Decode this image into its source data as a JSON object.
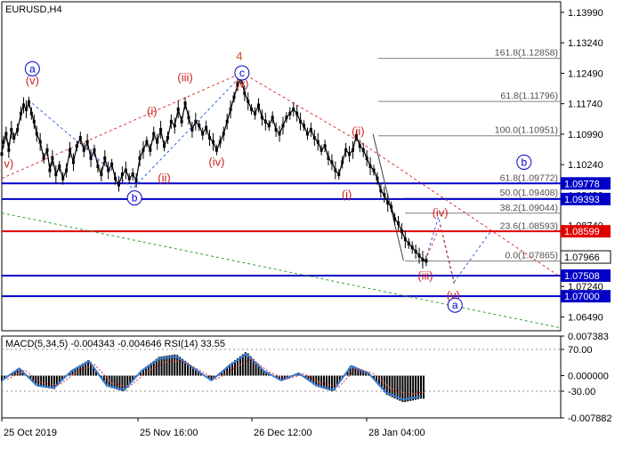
{
  "chart_data": {
    "type": "candlestick",
    "symbol_label": "EURUSD,H4",
    "x_tick_labels": [
      "25 Oct 2019",
      "25 Nov 16:00",
      "26 Dec 12:00",
      "28 Jan 04:00"
    ],
    "price_axis": {
      "ylim": [
        1.0615,
        1.1425
      ],
      "ticks": [
        {
          "value": 1.1399,
          "label": "1.13990"
        },
        {
          "value": 1.1324,
          "label": "1.13240"
        },
        {
          "value": 1.1249,
          "label": "1.12490"
        },
        {
          "value": 1.1174,
          "label": "1.11740"
        },
        {
          "value": 1.1099,
          "label": "1.10990"
        },
        {
          "value": 1.1024,
          "label": "1.10240"
        },
        {
          "value": 1.0949,
          "label": "1.09490"
        },
        {
          "value": 1.0874,
          "label": "1.08740"
        },
        {
          "value": 1.0724,
          "label": "1.07240"
        },
        {
          "value": 1.0649,
          "label": "1.06490"
        }
      ]
    },
    "price_series": [
      {
        "t": 0,
        "v": 1.105
      },
      {
        "t": 2,
        "v": 1.108
      },
      {
        "t": 5,
        "v": 1.11
      },
      {
        "t": 8,
        "v": 1.106
      },
      {
        "t": 11,
        "v": 1.111
      },
      {
        "t": 14,
        "v": 1.109
      },
      {
        "t": 18,
        "v": 1.111
      },
      {
        "t": 22,
        "v": 1.115
      },
      {
        "t": 25,
        "v": 1.117
      },
      {
        "t": 28,
        "v": 1.116
      },
      {
        "t": 31,
        "v": 1.1178
      },
      {
        "t": 34,
        "v": 1.115
      },
      {
        "t": 37,
        "v": 1.113
      },
      {
        "t": 40,
        "v": 1.11
      },
      {
        "t": 44,
        "v": 1.108
      },
      {
        "t": 48,
        "v": 1.104
      },
      {
        "t": 52,
        "v": 1.106
      },
      {
        "t": 55,
        "v": 1.101
      },
      {
        "t": 58,
        "v": 1.104
      },
      {
        "t": 62,
        "v": 1.1
      },
      {
        "t": 66,
        "v": 1.102
      },
      {
        "t": 70,
        "v": 1.099
      },
      {
        "t": 74,
        "v": 1.101
      },
      {
        "t": 78,
        "v": 1.106
      },
      {
        "t": 82,
        "v": 1.103
      },
      {
        "t": 86,
        "v": 1.107
      },
      {
        "t": 90,
        "v": 1.109
      },
      {
        "t": 94,
        "v": 1.106
      },
      {
        "t": 98,
        "v": 1.108
      },
      {
        "t": 102,
        "v": 1.104
      },
      {
        "t": 106,
        "v": 1.106
      },
      {
        "t": 110,
        "v": 1.102
      },
      {
        "t": 114,
        "v": 1.1
      },
      {
        "t": 118,
        "v": 1.104
      },
      {
        "t": 122,
        "v": 1.101
      },
      {
        "t": 126,
        "v": 1.1025
      },
      {
        "t": 130,
        "v": 1.099
      },
      {
        "t": 134,
        "v": 1.0975
      },
      {
        "t": 138,
        "v": 1.1
      },
      {
        "t": 142,
        "v": 1.101
      },
      {
        "t": 146,
        "v": 1.099
      },
      {
        "t": 150,
        "v": 1.1
      },
      {
        "t": 154,
        "v": 1.0985
      },
      {
        "t": 158,
        "v": 1.104
      },
      {
        "t": 162,
        "v": 1.106
      },
      {
        "t": 166,
        "v": 1.108
      },
      {
        "t": 170,
        "v": 1.106
      },
      {
        "t": 174,
        "v": 1.11
      },
      {
        "t": 178,
        "v": 1.108
      },
      {
        "t": 182,
        "v": 1.111
      },
      {
        "t": 186,
        "v": 1.107
      },
      {
        "t": 190,
        "v": 1.109
      },
      {
        "t": 194,
        "v": 1.113
      },
      {
        "t": 198,
        "v": 1.112
      },
      {
        "t": 202,
        "v": 1.116
      },
      {
        "t": 206,
        "v": 1.113
      },
      {
        "t": 210,
        "v": 1.1175
      },
      {
        "t": 214,
        "v": 1.114
      },
      {
        "t": 218,
        "v": 1.111
      },
      {
        "t": 222,
        "v": 1.113
      },
      {
        "t": 226,
        "v": 1.112
      },
      {
        "t": 230,
        "v": 1.11
      },
      {
        "t": 234,
        "v": 1.1115
      },
      {
        "t": 238,
        "v": 1.109
      },
      {
        "t": 242,
        "v": 1.108
      },
      {
        "t": 246,
        "v": 1.106
      },
      {
        "t": 250,
        "v": 1.108
      },
      {
        "t": 254,
        "v": 1.11
      },
      {
        "t": 258,
        "v": 1.113
      },
      {
        "t": 262,
        "v": 1.116
      },
      {
        "t": 266,
        "v": 1.119
      },
      {
        "t": 270,
        "v": 1.122
      },
      {
        "t": 274,
        "v": 1.1239
      },
      {
        "t": 278,
        "v": 1.12
      },
      {
        "t": 282,
        "v": 1.118
      },
      {
        "t": 286,
        "v": 1.116
      },
      {
        "t": 290,
        "v": 1.115
      },
      {
        "t": 294,
        "v": 1.117
      },
      {
        "t": 298,
        "v": 1.114
      },
      {
        "t": 302,
        "v": 1.113
      },
      {
        "t": 306,
        "v": 1.112
      },
      {
        "t": 310,
        "v": 1.114
      },
      {
        "t": 314,
        "v": 1.111
      },
      {
        "t": 318,
        "v": 1.11
      },
      {
        "t": 322,
        "v": 1.112
      },
      {
        "t": 326,
        "v": 1.114
      },
      {
        "t": 330,
        "v": 1.115
      },
      {
        "t": 334,
        "v": 1.116
      },
      {
        "t": 338,
        "v": 1.115
      },
      {
        "t": 342,
        "v": 1.113
      },
      {
        "t": 346,
        "v": 1.112
      },
      {
        "t": 350,
        "v": 1.11
      },
      {
        "t": 354,
        "v": 1.111
      },
      {
        "t": 358,
        "v": 1.109
      },
      {
        "t": 362,
        "v": 1.108
      },
      {
        "t": 366,
        "v": 1.106
      },
      {
        "t": 370,
        "v": 1.107
      },
      {
        "t": 374,
        "v": 1.104
      },
      {
        "t": 378,
        "v": 1.103
      },
      {
        "t": 382,
        "v": 1.101
      },
      {
        "t": 386,
        "v": 1.1
      },
      {
        "t": 390,
        "v": 1.103
      },
      {
        "t": 394,
        "v": 1.106
      },
      {
        "t": 398,
        "v": 1.105
      },
      {
        "t": 402,
        "v": 1.106
      },
      {
        "t": 406,
        "v": 1.1095
      },
      {
        "t": 410,
        "v": 1.107
      },
      {
        "t": 414,
        "v": 1.106
      },
      {
        "t": 418,
        "v": 1.104
      },
      {
        "t": 422,
        "v": 1.102
      },
      {
        "t": 426,
        "v": 1.101
      },
      {
        "t": 430,
        "v": 1.099
      },
      {
        "t": 434,
        "v": 1.096
      },
      {
        "t": 438,
        "v": 1.095
      },
      {
        "t": 442,
        "v": 1.093
      },
      {
        "t": 446,
        "v": 1.092
      },
      {
        "t": 450,
        "v": 1.089
      },
      {
        "t": 454,
        "v": 1.088
      },
      {
        "t": 458,
        "v": 1.086
      },
      {
        "t": 462,
        "v": 1.084
      },
      {
        "t": 466,
        "v": 1.083
      },
      {
        "t": 470,
        "v": 1.082
      },
      {
        "t": 474,
        "v": 1.081
      },
      {
        "t": 478,
        "v": 1.08
      },
      {
        "t": 482,
        "v": 1.079
      },
      {
        "t": 486,
        "v": 1.0787
      }
    ],
    "levels": [
      {
        "value": 1.09778,
        "label": "1.09778",
        "color": "#0000c8",
        "style": "solid",
        "label_bg": "#0000c8"
      },
      {
        "value": 1.09393,
        "label": "1.09393",
        "color": "#0000c8",
        "style": "solid",
        "label_bg": "#0000c8"
      },
      {
        "value": 1.08599,
        "label": "1.08599",
        "color": "#e00000",
        "style": "solid",
        "label_bg": "#e00000"
      },
      {
        "value": 1.07508,
        "label": "1.07508",
        "color": "#0000c8",
        "style": "solid",
        "label_bg": "#0000c8"
      },
      {
        "value": 1.07,
        "label": "1.07000",
        "color": "#0000c8",
        "style": "solid",
        "label_bg": "#0000c8"
      },
      {
        "value": 1.07966,
        "label": "1.07966",
        "color": "#ffffff",
        "style": "current",
        "label_bg": "#ffffff"
      }
    ],
    "fib_extension_lines": [
      {
        "value": 1.12858,
        "label": "161.8(1.12858)"
      },
      {
        "value": 1.11796,
        "label": "61.8(1.11796)"
      },
      {
        "value": 1.10951,
        "label": "100.0(1.10951)"
      }
    ],
    "fib_retracement_lines": [
      {
        "value": 1.09772,
        "label": "61.8(1.09772)"
      },
      {
        "value": 1.09408,
        "label": "50.0(1.09408)"
      },
      {
        "value": 1.09044,
        "label": "38.2(1.09044)"
      },
      {
        "value": 1.08593,
        "label": "23.6(1.08593)"
      },
      {
        "value": 1.07865,
        "label": "0.0(1.07865)"
      }
    ],
    "wave_labels": [
      {
        "text": "4",
        "t": 272,
        "v": 1.129,
        "color": "#d04020",
        "circled": false
      },
      {
        "text": "c",
        "t": 275,
        "v": 1.125,
        "color": "#0000c8",
        "circled": true
      },
      {
        "text": "(v)",
        "t": 275,
        "v": 1.1222,
        "color": "#d02020",
        "circled": false
      },
      {
        "text": "(iii)",
        "t": 210,
        "v": 1.1238,
        "color": "#d02020",
        "circled": false
      },
      {
        "text": "(i)",
        "t": 172,
        "v": 1.1155,
        "color": "#d02020",
        "circled": false
      },
      {
        "text": "(ii)",
        "t": 186,
        "v": 1.099,
        "color": "#d02020",
        "circled": false
      },
      {
        "text": "(iv)",
        "t": 246,
        "v": 1.103,
        "color": "#d02020",
        "circled": false
      },
      {
        "text": "b",
        "t": 152,
        "v": 1.0942,
        "color": "#0000c8",
        "circled": true
      },
      {
        "text": "a",
        "t": 35,
        "v": 1.126,
        "color": "#0000c8",
        "circled": true
      },
      {
        "text": "(v)",
        "t": 35,
        "v": 1.123,
        "color": "#d02020",
        "circled": false
      },
      {
        "text": "v)",
        "t": 8,
        "v": 1.1025,
        "color": "#d02020",
        "circled": false
      },
      {
        "text": "(ii)",
        "t": 408,
        "v": 1.1105,
        "color": "#d02020",
        "circled": false
      },
      {
        "text": "(i)",
        "t": 395,
        "v": 1.095,
        "color": "#d02020",
        "circled": false
      },
      {
        "text": "(iii)",
        "t": 485,
        "v": 1.075,
        "color": "#d02020",
        "circled": false
      },
      {
        "text": "(iv)",
        "t": 502,
        "v": 1.0905,
        "color": "#d02020",
        "circled": false
      },
      {
        "text": "(v)",
        "t": 517,
        "v": 1.0702,
        "color": "#d02020",
        "circled": false
      },
      {
        "text": "a",
        "t": 519,
        "v": 1.0678,
        "color": "#0000c8",
        "circled": true
      },
      {
        "text": "b",
        "t": 598,
        "v": 1.103,
        "color": "#0000c8",
        "circled": true
      }
    ],
    "wave_paths": [
      {
        "color": "#e03030",
        "dash": "3,3",
        "points": [
          [
            0,
            1.099
          ],
          [
            275,
            1.125
          ],
          [
            410,
            1.108
          ],
          [
            640,
            1.0747
          ]
        ]
      },
      {
        "color": "#3060e0",
        "dash": "3,3",
        "points": [
          [
            35,
            1.1175
          ],
          [
            150,
            1.0965
          ],
          [
            275,
            1.1245
          ]
        ]
      },
      {
        "color": "#3060e0",
        "dash": "3,3",
        "points": [
          [
            485,
            1.0788
          ],
          [
            500,
            1.0895
          ],
          [
            518,
            1.0735
          ],
          [
            560,
            1.086
          ]
        ]
      },
      {
        "color": "#e03030",
        "dash": "3,3",
        "points": [
          [
            485,
            1.0788
          ],
          [
            502,
            1.0875
          ],
          [
            518,
            1.073
          ]
        ]
      },
      {
        "color": "#30a030",
        "dash": "3,3",
        "points": [
          [
            0,
            1.0905
          ],
          [
            640,
            1.0622
          ]
        ]
      },
      {
        "color": "#404040",
        "dash": "",
        "points": [
          [
            425,
            1.11
          ],
          [
            460,
            1.0788
          ]
        ]
      }
    ],
    "indicator": {
      "label": "MACD(5,34,5) -0.004343 -0.004646 RSI(14) 33.55",
      "ylim": [
        -0.007882,
        0.007383
      ],
      "axis_labels": [
        {
          "value": 0.007383,
          "label": "0.007383"
        },
        {
          "value": 0.0049,
          "label": "70.00"
        },
        {
          "value": 0.0,
          "label": "0.000000"
        },
        {
          "value": -0.0029,
          "label": "-30.00"
        },
        {
          "value": -0.007882,
          "label": "-0.007882"
        }
      ],
      "macd_histogram": [
        {
          "t": 0,
          "v": -0.001
        },
        {
          "t": 20,
          "v": 0.0015
        },
        {
          "t": 40,
          "v": -0.002
        },
        {
          "t": 60,
          "v": -0.0025
        },
        {
          "t": 80,
          "v": 0.001
        },
        {
          "t": 100,
          "v": 0.003
        },
        {
          "t": 120,
          "v": -0.002
        },
        {
          "t": 140,
          "v": -0.003
        },
        {
          "t": 160,
          "v": 0.001
        },
        {
          "t": 180,
          "v": 0.0035
        },
        {
          "t": 200,
          "v": 0.004
        },
        {
          "t": 220,
          "v": 0.0015
        },
        {
          "t": 240,
          "v": -0.001
        },
        {
          "t": 260,
          "v": 0.002
        },
        {
          "t": 280,
          "v": 0.0045
        },
        {
          "t": 300,
          "v": 0.001
        },
        {
          "t": 320,
          "v": -0.001
        },
        {
          "t": 340,
          "v": 0.0005
        },
        {
          "t": 360,
          "v": -0.002
        },
        {
          "t": 380,
          "v": -0.003
        },
        {
          "t": 400,
          "v": 0.002
        },
        {
          "t": 420,
          "v": 0.0005
        },
        {
          "t": 440,
          "v": -0.0035
        },
        {
          "t": 460,
          "v": -0.005
        },
        {
          "t": 480,
          "v": -0.0043
        }
      ],
      "rsi_line_color": "#3a7bd5",
      "signal_line_color": "#e03030"
    }
  }
}
